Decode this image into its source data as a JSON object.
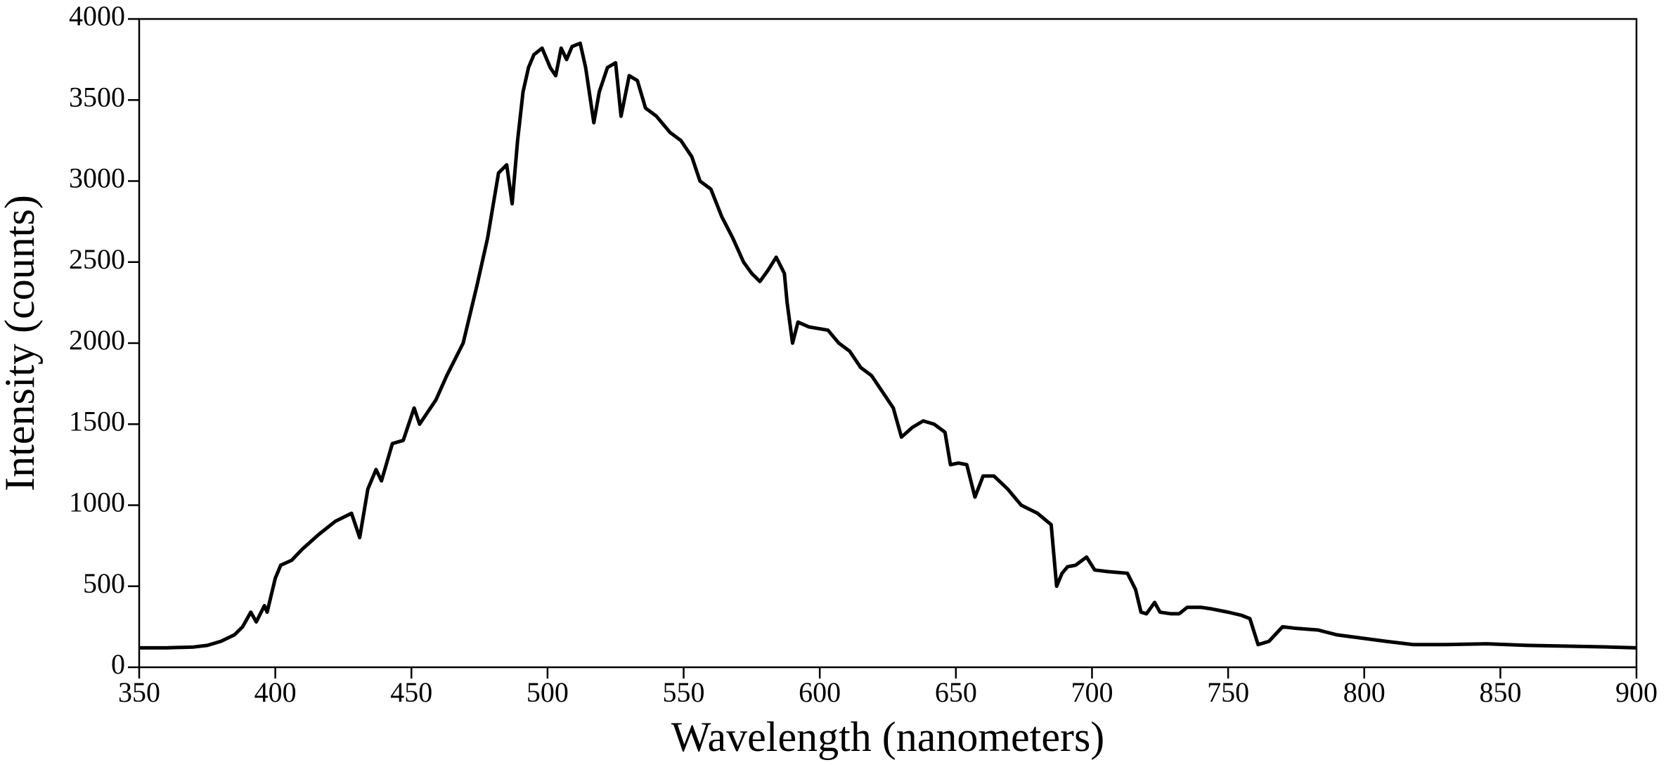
{
  "chart_data": {
    "type": "line",
    "x_label": "Wavelength (nanometers)",
    "y_label": "Intensity (counts)",
    "xlim": [
      350,
      900
    ],
    "xticks": [
      350,
      400,
      450,
      500,
      550,
      600,
      650,
      700,
      750,
      800,
      850,
      900
    ],
    "ylim": [
      0,
      4000
    ],
    "yticks": [
      0,
      500,
      1000,
      1500,
      2000,
      2500,
      3000,
      3500,
      4000
    ],
    "grid": false,
    "x": [
      350,
      360,
      370,
      375,
      380,
      385,
      388,
      391,
      393,
      396,
      397,
      400,
      402,
      406,
      410,
      416,
      422,
      428,
      431,
      434,
      437,
      439,
      443,
      447,
      451,
      453,
      459,
      463,
      469,
      474,
      478,
      482,
      485,
      487,
      489,
      491,
      493,
      495,
      498,
      501,
      503,
      505,
      507,
      509,
      512,
      514,
      517,
      519,
      522,
      525,
      527,
      530,
      533,
      536,
      540,
      545,
      549,
      553,
      556,
      560,
      564,
      568,
      572,
      575,
      578,
      581,
      584,
      587,
      588,
      590,
      592,
      596,
      603,
      607,
      611,
      615,
      619,
      623,
      627,
      630,
      634,
      638,
      642,
      646,
      648,
      651,
      654,
      657,
      660,
      664,
      669,
      674,
      680,
      685,
      687,
      689,
      691,
      694,
      698,
      701,
      706,
      713,
      716,
      718,
      720,
      723,
      725,
      729,
      732,
      735,
      740,
      744,
      750,
      755,
      758,
      761,
      765,
      770,
      775,
      783,
      790,
      799,
      808,
      818,
      830,
      845,
      860,
      875,
      890,
      900
    ],
    "series": [
      {
        "color": "#000000",
        "values": [
          120,
          120,
          125,
          135,
          160,
          200,
          250,
          340,
          280,
          380,
          340,
          550,
          630,
          660,
          730,
          820,
          900,
          950,
          800,
          1100,
          1220,
          1150,
          1380,
          1400,
          1600,
          1500,
          1650,
          1800,
          2000,
          2350,
          2650,
          3050,
          3100,
          2860,
          3250,
          3550,
          3700,
          3780,
          3820,
          3700,
          3650,
          3820,
          3750,
          3830,
          3850,
          3700,
          3360,
          3550,
          3700,
          3730,
          3400,
          3650,
          3620,
          3450,
          3400,
          3300,
          3250,
          3150,
          3000,
          2950,
          2780,
          2650,
          2500,
          2430,
          2380,
          2450,
          2530,
          2430,
          2250,
          2000,
          2130,
          2100,
          2080,
          2000,
          1950,
          1850,
          1800,
          1700,
          1600,
          1420,
          1480,
          1520,
          1500,
          1450,
          1250,
          1260,
          1250,
          1050,
          1180,
          1180,
          1100,
          1000,
          950,
          880,
          500,
          580,
          620,
          630,
          680,
          600,
          590,
          580,
          480,
          340,
          330,
          400,
          340,
          330,
          330,
          370,
          370,
          360,
          340,
          320,
          300,
          140,
          160,
          250,
          240,
          230,
          200,
          180,
          160,
          140,
          140,
          145,
          135,
          130,
          125,
          120
        ]
      }
    ]
  }
}
